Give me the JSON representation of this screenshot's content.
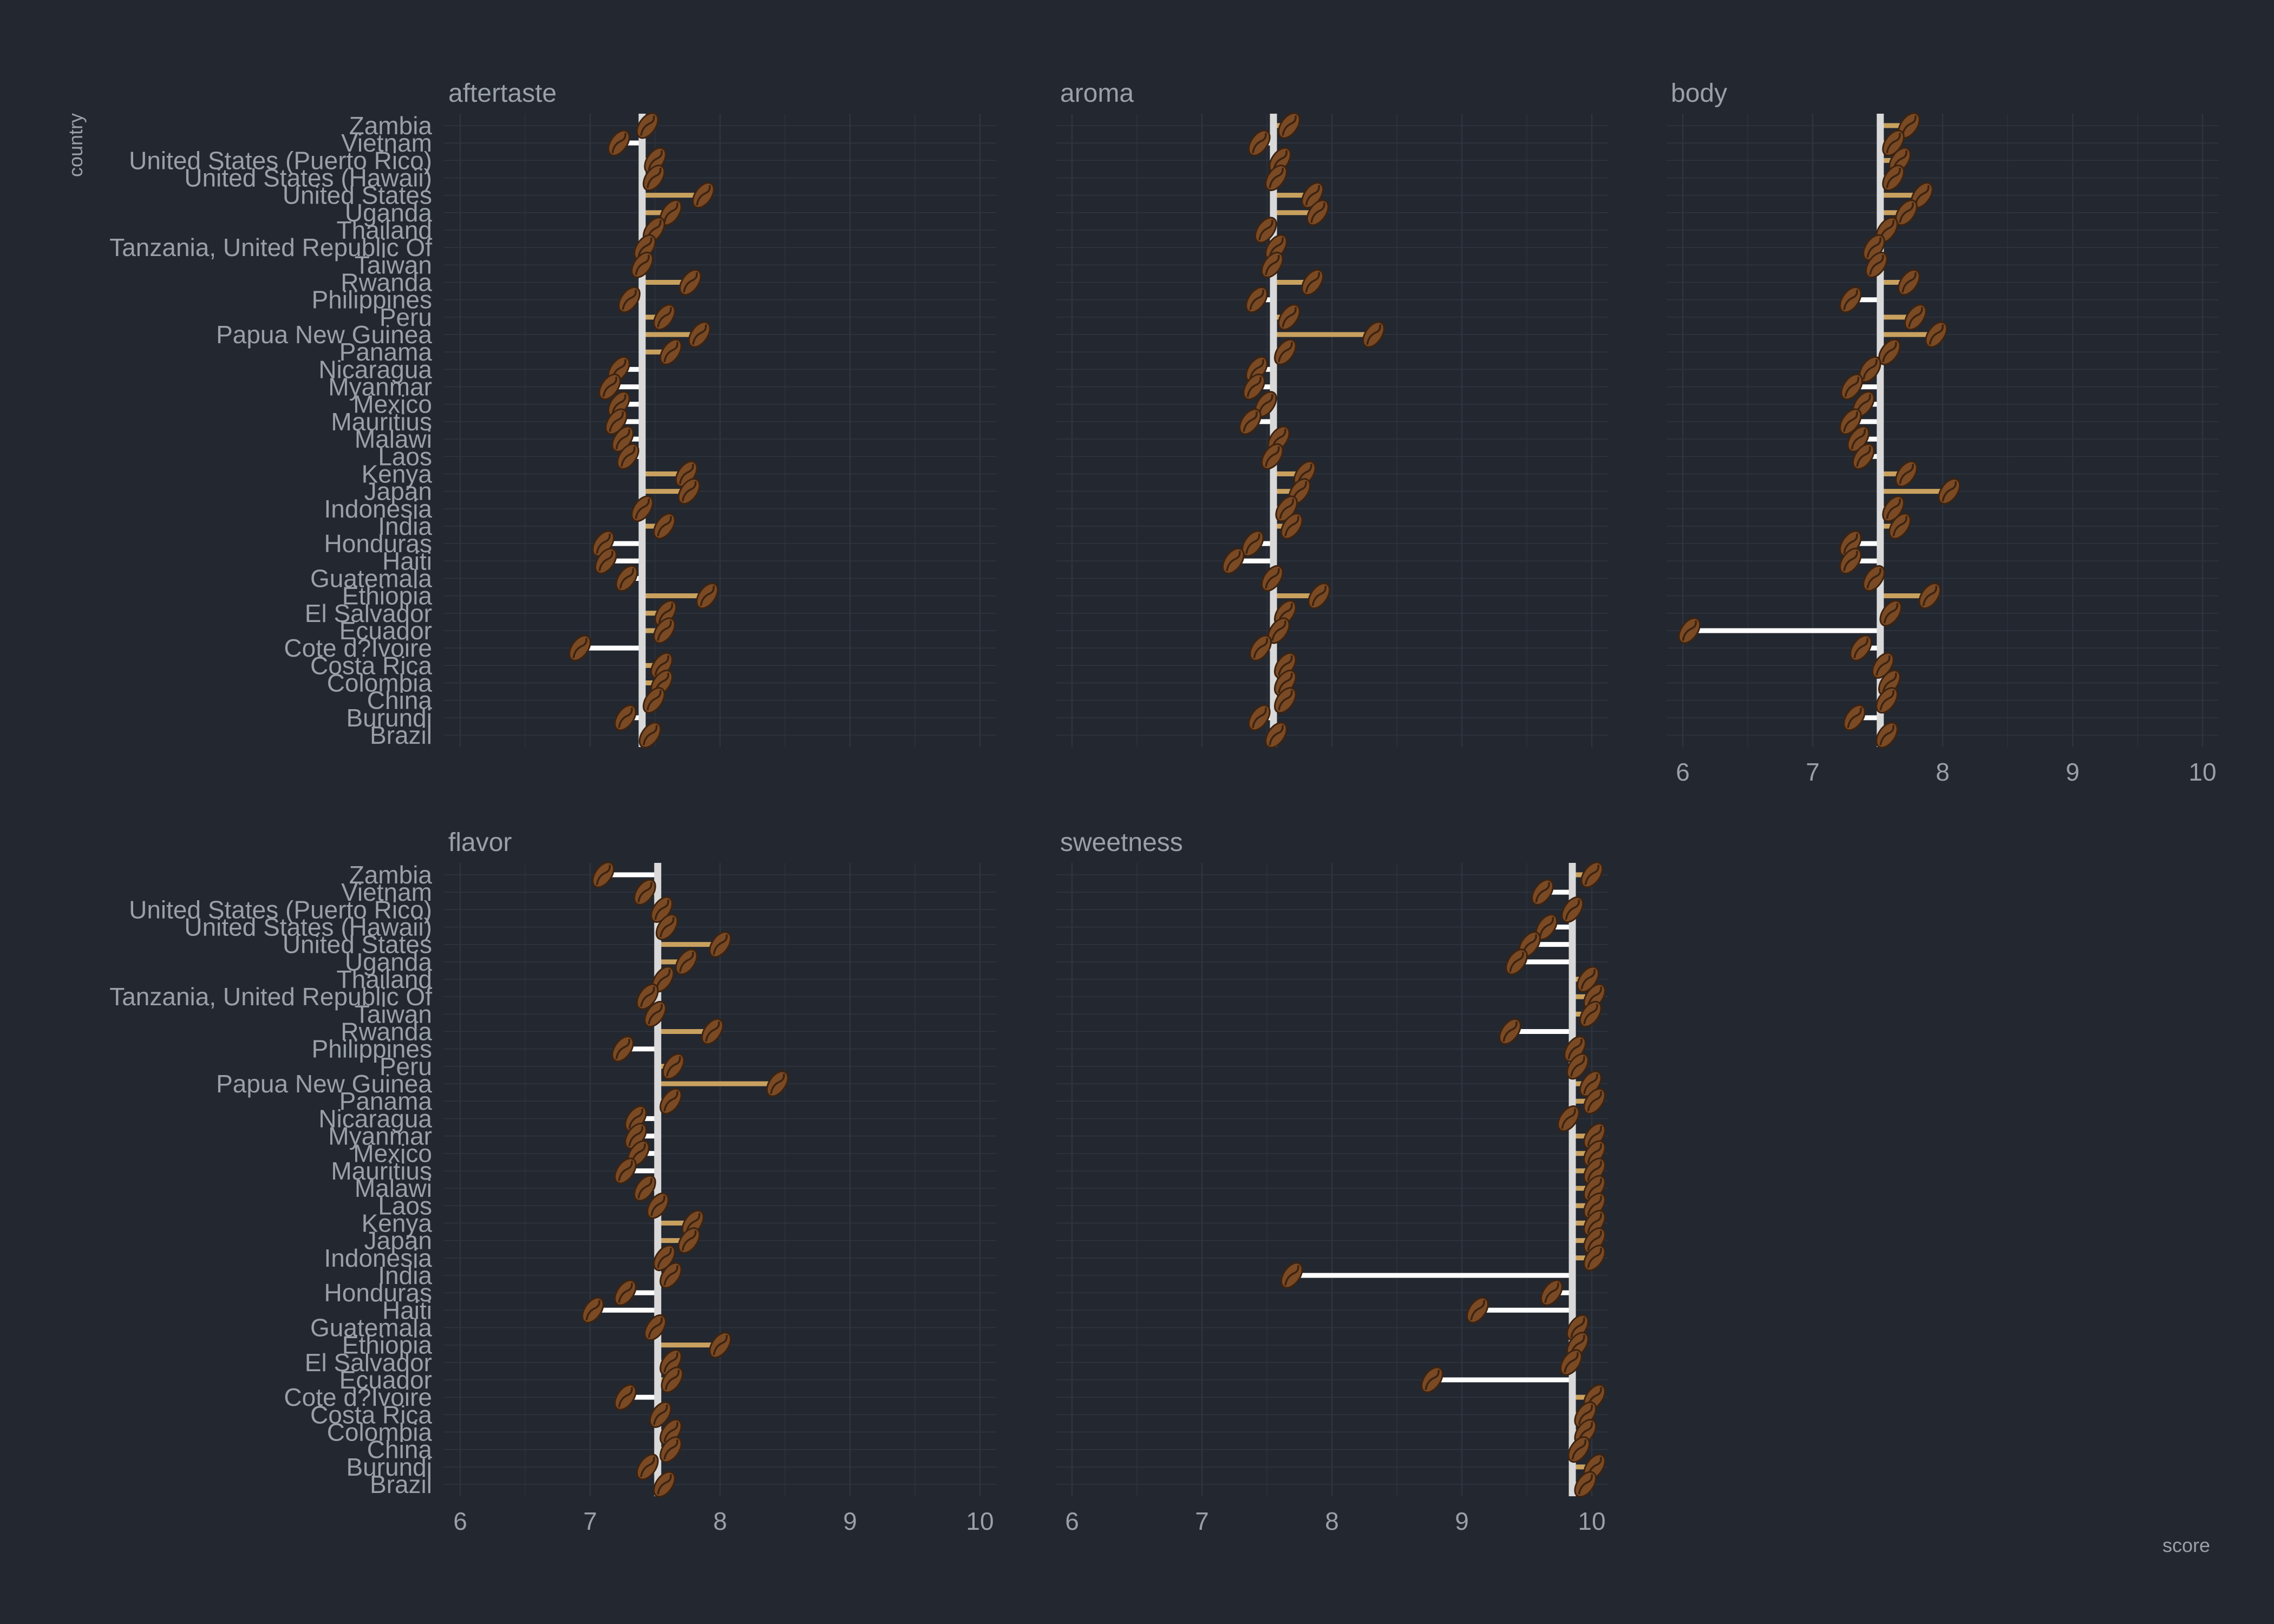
{
  "chart_data": {
    "type": "lollipop",
    "axes": {
      "x_title": "score",
      "y_title": "country",
      "xlim": [
        6,
        10
      ],
      "x_ticks": [
        6,
        7,
        8,
        9,
        10
      ]
    },
    "colors": {
      "background": "#23272f",
      "grid": "#2f3540",
      "text": "#9aa0a8",
      "mean_line": "#d9d9d9",
      "above": "#c9a15f",
      "below": "#ffffff",
      "bean": "#7a4a25",
      "bean_dark": "#3d2310"
    },
    "categories": [
      "Zambia",
      "Vietnam",
      "United States (Puerto Rico)",
      "United States (Hawaii)",
      "United States",
      "Uganda",
      "Thailand",
      "Tanzania, United Republic Of",
      "Taiwan",
      "Rwanda",
      "Philippines",
      "Peru",
      "Papua New Guinea",
      "Panama",
      "Nicaragua",
      "Myanmar",
      "Mexico",
      "Mauritius",
      "Malawi",
      "Laos",
      "Kenya",
      "Japan",
      "Indonesia",
      "India",
      "Honduras",
      "Haiti",
      "Guatemala",
      "Ethiopia",
      "El Salvador",
      "Ecuador",
      "Cote d?Ivoire",
      "Costa Rica",
      "Colombia",
      "China",
      "Burundi",
      "Brazil"
    ],
    "panels": [
      {
        "title": "aftertaste",
        "mean": 7.4,
        "values": [
          7.42,
          7.2,
          7.48,
          7.47,
          7.85,
          7.6,
          7.47,
          7.4,
          7.38,
          7.75,
          7.28,
          7.55,
          7.82,
          7.6,
          7.2,
          7.13,
          7.2,
          7.18,
          7.23,
          7.27,
          7.72,
          7.74,
          7.38,
          7.55,
          7.08,
          7.1,
          7.26,
          7.88,
          7.56,
          7.55,
          6.9,
          7.53,
          7.53,
          7.47,
          7.25,
          7.44
        ]
      },
      {
        "title": "aroma",
        "mean": 7.55,
        "values": [
          7.65,
          7.42,
          7.58,
          7.55,
          7.83,
          7.87,
          7.47,
          7.55,
          7.52,
          7.83,
          7.4,
          7.65,
          8.3,
          7.62,
          7.4,
          7.38,
          7.47,
          7.35,
          7.57,
          7.52,
          7.77,
          7.73,
          7.63,
          7.67,
          7.37,
          7.22,
          7.52,
          7.88,
          7.62,
          7.57,
          7.43,
          7.62,
          7.62,
          7.62,
          7.42,
          7.55
        ]
      },
      {
        "title": "body",
        "mean": 7.52,
        "values": [
          7.72,
          7.6,
          7.65,
          7.6,
          7.82,
          7.7,
          7.55,
          7.45,
          7.47,
          7.72,
          7.27,
          7.77,
          7.93,
          7.57,
          7.42,
          7.28,
          7.37,
          7.27,
          7.33,
          7.37,
          7.7,
          8.03,
          7.6,
          7.65,
          7.27,
          7.27,
          7.45,
          7.88,
          7.58,
          6.03,
          7.35,
          7.52,
          7.57,
          7.55,
          7.3,
          7.55
        ]
      },
      {
        "title": "flavor",
        "mean": 7.52,
        "values": [
          7.08,
          7.4,
          7.53,
          7.57,
          7.98,
          7.72,
          7.54,
          7.42,
          7.48,
          7.92,
          7.23,
          7.62,
          8.42,
          7.6,
          7.33,
          7.33,
          7.35,
          7.25,
          7.4,
          7.5,
          7.77,
          7.74,
          7.55,
          7.6,
          7.25,
          7.0,
          7.48,
          7.98,
          7.6,
          7.61,
          7.25,
          7.52,
          7.6,
          7.6,
          7.42,
          7.55
        ]
      },
      {
        "title": "sweetness",
        "mean": 9.85,
        "values": [
          9.98,
          9.6,
          9.83,
          9.63,
          9.5,
          9.4,
          9.95,
          10.0,
          9.97,
          9.35,
          9.85,
          9.87,
          9.97,
          10.0,
          9.8,
          10.0,
          10.0,
          10.0,
          10.0,
          10.0,
          10.0,
          10.0,
          10.0,
          7.67,
          9.67,
          9.1,
          9.87,
          9.87,
          9.82,
          8.75,
          10.0,
          9.93,
          9.93,
          9.88,
          10.0,
          9.93
        ]
      }
    ]
  }
}
